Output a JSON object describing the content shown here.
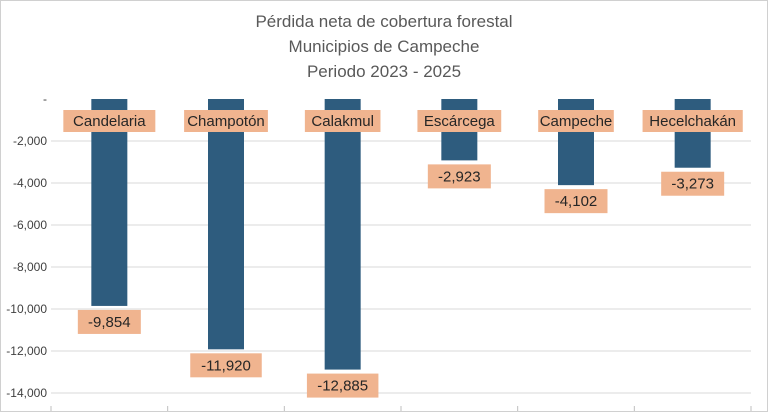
{
  "chart_data": {
    "type": "bar",
    "orientation": "vertical",
    "title_lines": [
      "Pérdida neta de cobertura forestal",
      "Municipios de Campeche",
      "Periodo 2023 - 2025"
    ],
    "categories": [
      "Candelaria",
      "Champotón",
      "Calakmul",
      "Escárcega",
      "Campeche",
      "Hecelchakán"
    ],
    "values": [
      -9854,
      -11920,
      -12885,
      -2923,
      -4102,
      -3273
    ],
    "value_labels": [
      "-9,854",
      "-11,920",
      "-12,885",
      "-2,923",
      "-4,102",
      "-3,273"
    ],
    "y_ticks": [
      0,
      -2000,
      -4000,
      -6000,
      -8000,
      -10000,
      -12000,
      -14000
    ],
    "y_tick_labels": [
      "-",
      "-2,000",
      "-4,000",
      "-6,000",
      "-8,000",
      "-10,000",
      "-12,000",
      "-14,000"
    ],
    "ylim": [
      -14000,
      0
    ],
    "grid": true,
    "legend": "none",
    "colors": {
      "bar": "#2e5c7e",
      "label_box": "#f0b48f",
      "gridline": "#d9d9d9",
      "title": "#595959"
    }
  }
}
